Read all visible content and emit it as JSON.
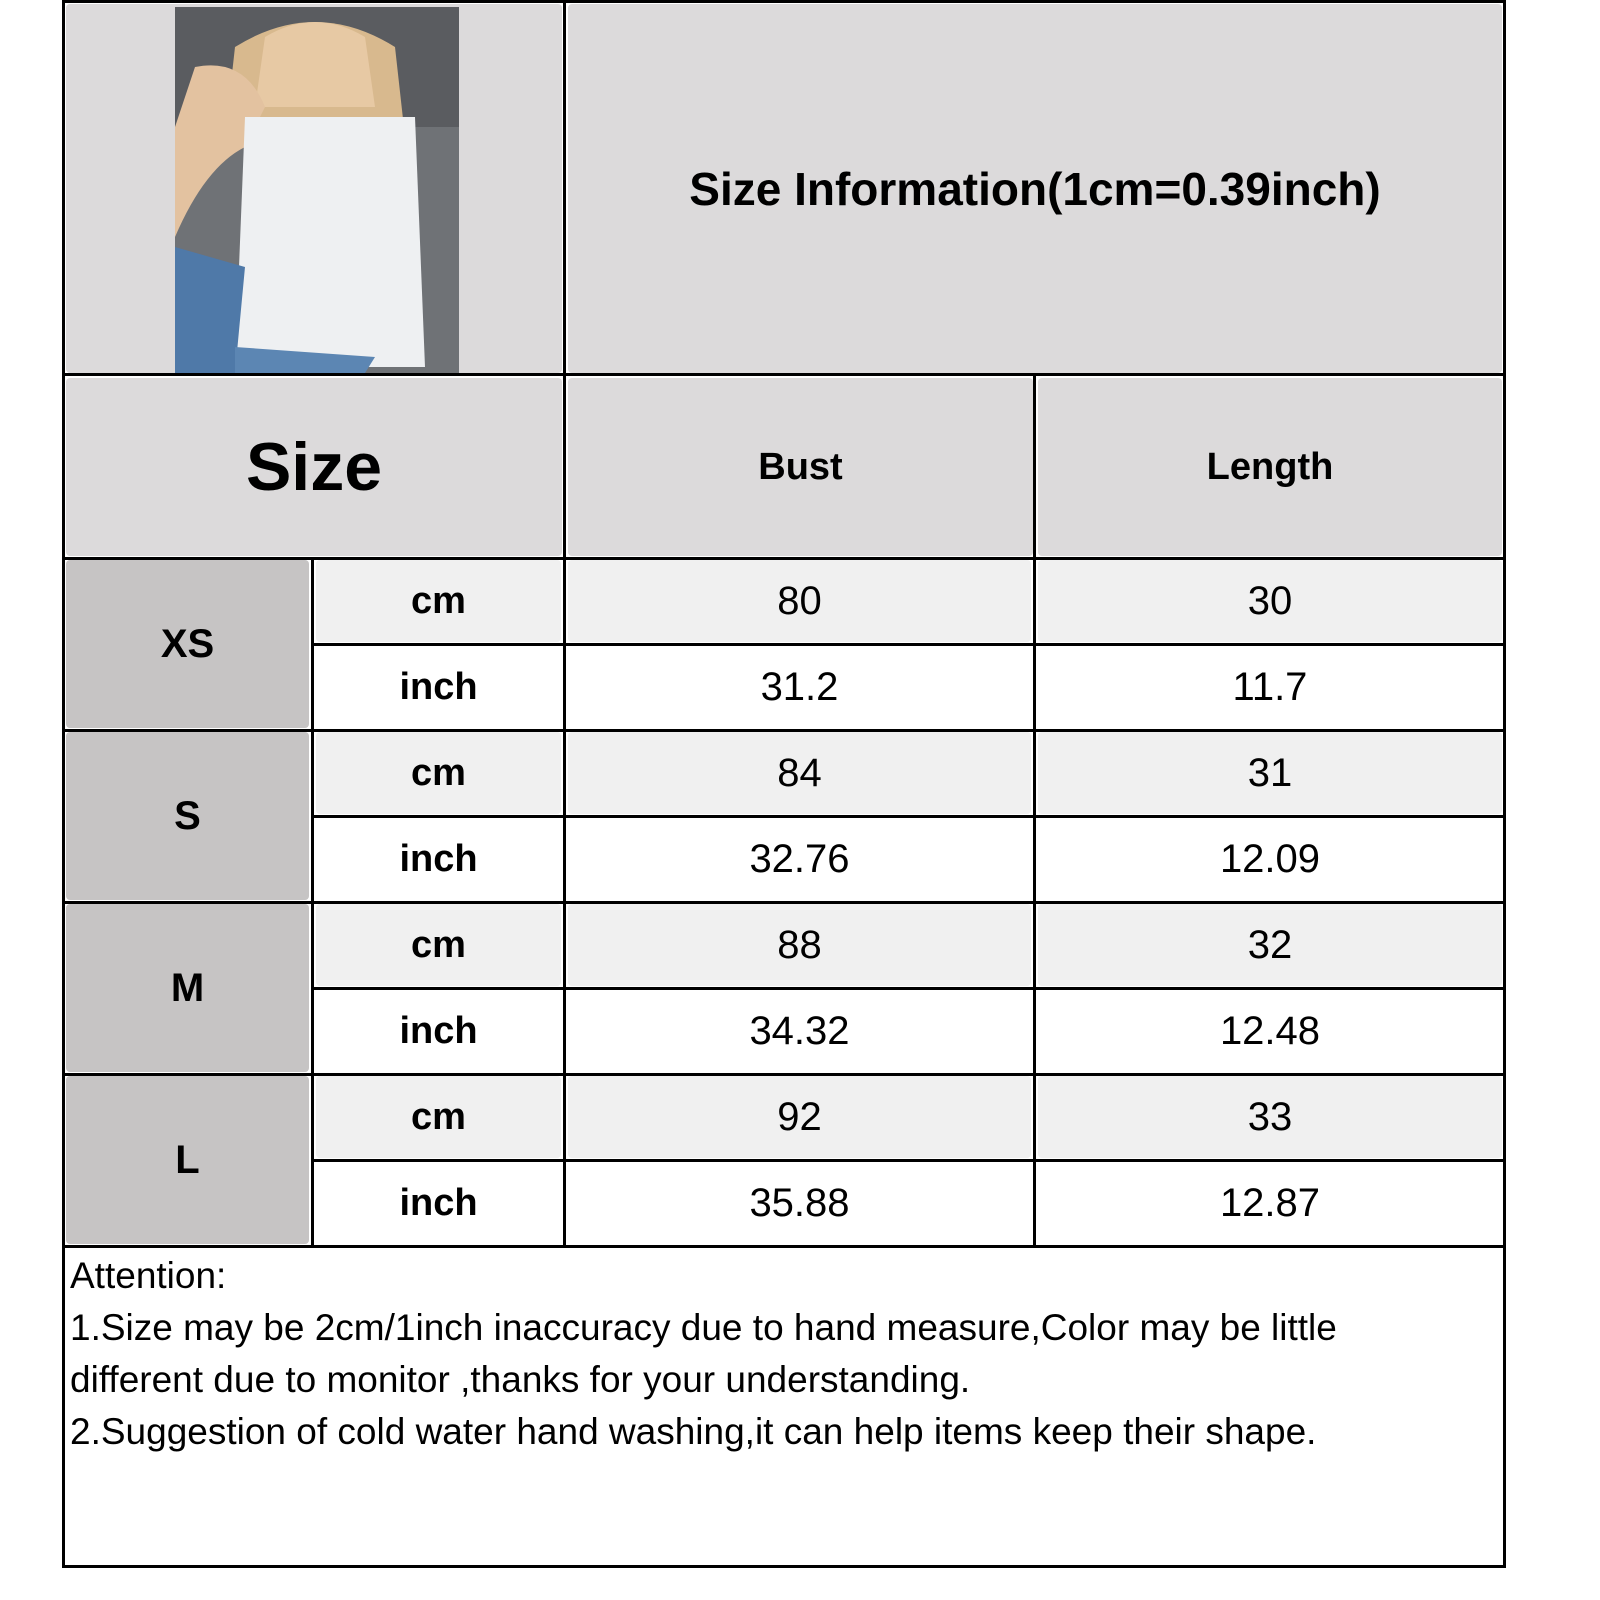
{
  "title": "Size Information(1cm=0.39inch)",
  "header": {
    "size": "Size",
    "bust": "Bust",
    "length": "Length"
  },
  "rows": [
    {
      "size": "XS",
      "cm": {
        "unit": "cm",
        "bust": "80",
        "length": "30"
      },
      "inch": {
        "unit": "inch",
        "bust": "31.2",
        "length": "11.7"
      }
    },
    {
      "size": "S",
      "cm": {
        "unit": "cm",
        "bust": "84",
        "length": "31"
      },
      "inch": {
        "unit": "inch",
        "bust": "32.76",
        "length": "12.09"
      }
    },
    {
      "size": "M",
      "cm": {
        "unit": "cm",
        "bust": "88",
        "length": "32"
      },
      "inch": {
        "unit": "inch",
        "bust": "34.32",
        "length": "12.48"
      }
    },
    {
      "size": "L",
      "cm": {
        "unit": "cm",
        "bust": "92",
        "length": "33"
      },
      "inch": {
        "unit": "inch",
        "bust": "35.88",
        "length": "12.87"
      }
    }
  ],
  "notes": {
    "heading": "Attention:",
    "line1a": "1.Size may be 2cm/1inch inaccuracy due to hand measure,Color may be little",
    "line1b": "different due to monitor ,thanks for your understanding.",
    "line2": "2.Suggestion of cold water hand washing,it can help items keep their shape."
  },
  "colors": {
    "header_bg": "#dcdadb",
    "size_bg": "#c6c4c4",
    "cm_bg": "#f0f0f0",
    "inch_bg": "#ffffff",
    "border": "#000000"
  }
}
